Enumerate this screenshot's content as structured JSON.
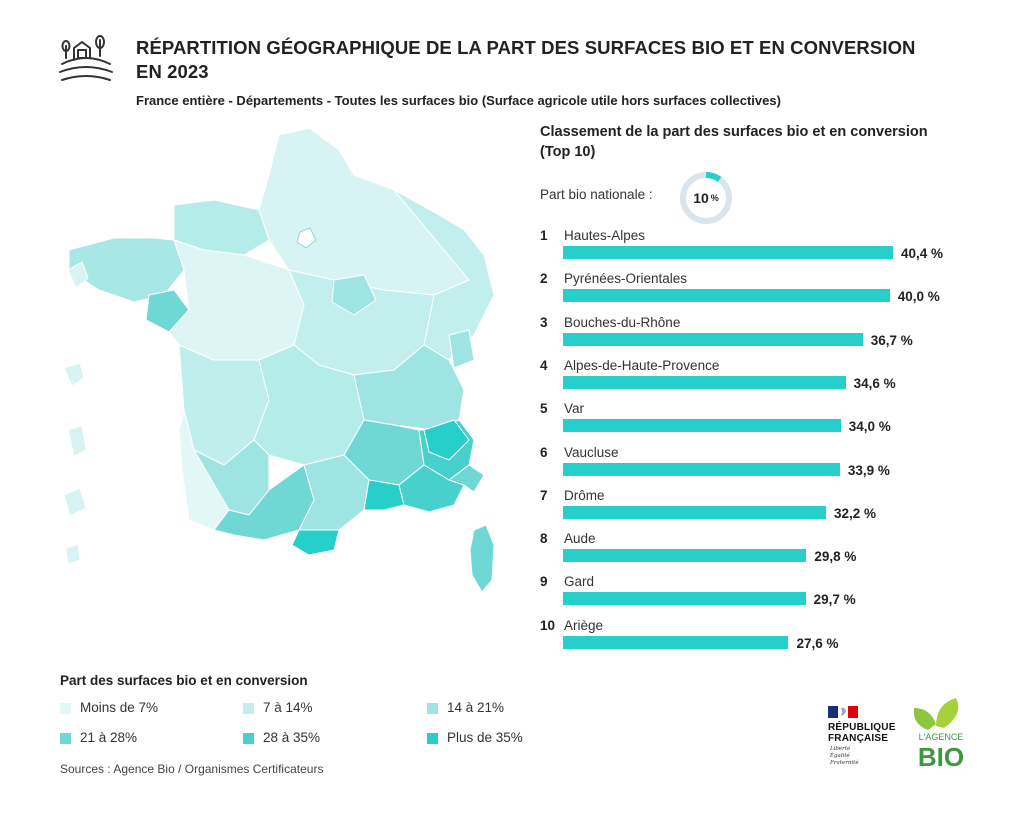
{
  "header": {
    "title": "RÉPARTITION GÉOGRAPHIQUE DE LA PART DES SURFACES BIO ET EN CONVERSION EN 2023",
    "subtitle": "France entière - Départements - Toutes les surfaces bio (Surface agricole utile hors surfaces collectives)",
    "icon": "farm-icon"
  },
  "ranking": {
    "title": "Classement de la part des surfaces bio et en conversion (Top 10)",
    "national_label": "Part bio nationale :",
    "national_value": "10",
    "national_unit": "%",
    "national_fraction": 0.1
  },
  "chart_data": {
    "type": "bar",
    "orientation": "horizontal",
    "title": "Classement de la part des surfaces bio et en conversion (Top 10)",
    "categories": [
      "Hautes-Alpes",
      "Pyrénées-Orientales",
      "Bouches-du-Rhône",
      "Alpes-de-Haute-Provence",
      "Var",
      "Vaucluse",
      "Drôme",
      "Aude",
      "Gard",
      "Ariège"
    ],
    "ranks": [
      "1",
      "2",
      "3",
      "4",
      "5",
      "6",
      "7",
      "8",
      "9",
      "10"
    ],
    "values": [
      40.4,
      40.0,
      36.7,
      34.6,
      34.0,
      33.9,
      32.2,
      29.8,
      29.7,
      27.6
    ],
    "value_labels": [
      "40,4 %",
      "40,0 %",
      "36,7 %",
      "34,6 %",
      "34,0 %",
      "33,9 %",
      "32,2 %",
      "29,8 %",
      "29,7 %",
      "27,6 %"
    ],
    "xlim": [
      0,
      40.4
    ],
    "bar_color": "#26cfc9"
  },
  "legend": {
    "title": "Part des surfaces bio et en conversion",
    "items": [
      {
        "label": "Moins de 7%",
        "color": "#e3f7f7"
      },
      {
        "label": "7 à 14%",
        "color": "#c2efee"
      },
      {
        "label": "14 à 21%",
        "color": "#9de4e2"
      },
      {
        "label": "21 à 28%",
        "color": "#6fd8d5"
      },
      {
        "label": "28 à 35%",
        "color": "#48d0cc"
      },
      {
        "label": "Plus de 35%",
        "color": "#26cfc9"
      }
    ]
  },
  "sources": "Sources : Agence Bio / Organismes Certificateurs",
  "logos": {
    "republique_line1": "RÉPUBLIQUE",
    "republique_line2": "FRANÇAISE",
    "motto_1": "Liberté",
    "motto_2": "Égalité",
    "motto_3": "Fraternité",
    "agence_top": "L'AGENCE",
    "agence_bio": "BIO"
  }
}
